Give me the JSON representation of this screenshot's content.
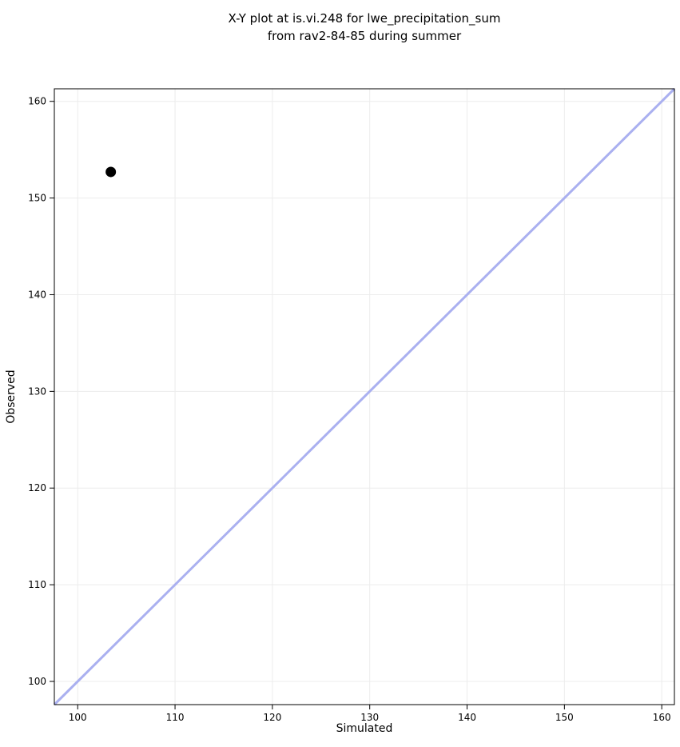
{
  "title": {
    "line1": "X-Y plot at is.vi.248 for lwe_precipitation_sum",
    "line2": "from rav2-84-85 during summer"
  },
  "chart_data": {
    "type": "scatter",
    "title": "X-Y plot at is.vi.248 for lwe_precipitation_sum\nfrom rav2-84-85 during summer",
    "xlabel": "Simulated",
    "ylabel": "Observed",
    "xlim": [
      97.6,
      161.3
    ],
    "ylim": [
      97.6,
      161.3
    ],
    "xticks": [
      100,
      110,
      120,
      130,
      140,
      150,
      160
    ],
    "yticks": [
      100,
      110,
      120,
      130,
      140,
      150,
      160
    ],
    "grid": true,
    "legend": "none",
    "series": [
      {
        "name": "observed-vs-simulated",
        "marker": "circle",
        "color": "#000000",
        "points": [
          {
            "x": 103.4,
            "y": 152.7
          }
        ]
      }
    ],
    "reference_line": {
      "name": "identity-line",
      "equation": "y = x",
      "from": [
        97.6,
        97.6
      ],
      "to": [
        161.3,
        161.3
      ],
      "color": "#aab0f0",
      "width": 3
    },
    "colors": {
      "grid": "#ececec",
      "spine": "#000000",
      "marker": "#000000",
      "identity_line": "#aab0f0",
      "background": "#ffffff"
    }
  }
}
